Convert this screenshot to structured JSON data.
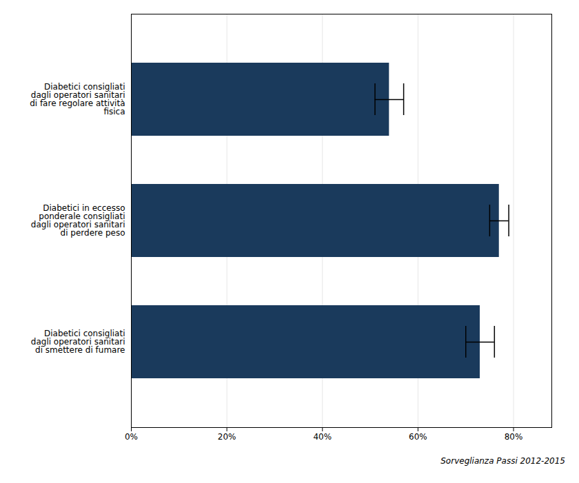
{
  "chart_data": {
    "type": "bar",
    "orientation": "horizontal",
    "categories": [
      "Diabetici consigliati\ndagli operatori sanitari\ndi fare regolare attività\nfisica",
      "Diabetici in eccesso\nponderale consigliati\ndagli operatori sanitari\ndi perdere peso",
      "Diabetici consigliati\ndagli operatori sanitari\ndi smettere di fumare"
    ],
    "values": [
      54,
      77,
      73
    ],
    "errors_low": [
      3,
      2,
      3
    ],
    "errors_high": [
      3,
      2,
      3
    ],
    "color": "#1a3a5c",
    "xlim": [
      0,
      88
    ],
    "xticks": [
      {
        "value": 0,
        "label": "0%"
      },
      {
        "value": 20,
        "label": "20%"
      },
      {
        "value": 40,
        "label": "40%"
      },
      {
        "value": 60,
        "label": "60%"
      },
      {
        "value": 80,
        "label": "80%"
      }
    ],
    "grid": true,
    "annotations": [
      "Sorveglianza Passi 2012-2015"
    ]
  }
}
